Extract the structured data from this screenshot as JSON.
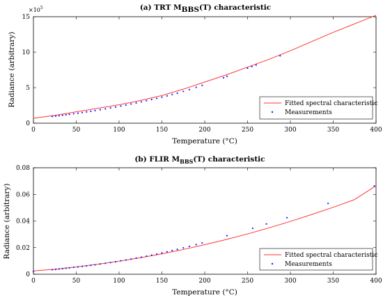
{
  "chart_data": [
    {
      "type": "line",
      "title_main": "(a) TRT M",
      "title_sub": "BBS",
      "title_tail": "(T) characteristic",
      "xlabel": "Temperature (°C)",
      "ylabel": "Radiance (arbitrary)",
      "exponent_label": "×10",
      "exponent_power": "5",
      "xlim": [
        0,
        400
      ],
      "ylim": [
        0,
        15
      ],
      "xticks": [
        0,
        50,
        100,
        150,
        200,
        250,
        300,
        350,
        400
      ],
      "yticks": [
        0,
        5,
        10,
        15
      ],
      "grid": false,
      "legend_position": "bottom-right",
      "fit_color": "#ff3333",
      "meas_color": "#1a1aff",
      "series": [
        {
          "name": "Fitted spectral characteristic",
          "x": [
            0,
            25,
            50,
            75,
            100,
            125,
            150,
            175,
            200,
            225,
            250,
            275,
            300,
            325,
            350,
            375,
            400
          ],
          "y": [
            0.7,
            1.1,
            1.6,
            2.1,
            2.6,
            3.2,
            3.9,
            4.8,
            5.8,
            6.8,
            7.9,
            9.0,
            10.2,
            11.5,
            12.8,
            14.0,
            15.2
          ]
        },
        {
          "name": "Measurements",
          "x": [
            22,
            26,
            30,
            34,
            38,
            42,
            47,
            52,
            57,
            62,
            67,
            72,
            78,
            84,
            90,
            96,
            102,
            108,
            114,
            120,
            126,
            132,
            138,
            144,
            150,
            156,
            162,
            168,
            175,
            182,
            190,
            197,
            222,
            226,
            250,
            255,
            260,
            288
          ],
          "y": [
            0.95,
            1.0,
            1.05,
            1.12,
            1.18,
            1.25,
            1.33,
            1.41,
            1.5,
            1.59,
            1.68,
            1.78,
            1.9,
            2.02,
            2.15,
            2.28,
            2.42,
            2.56,
            2.71,
            2.86,
            3.01,
            3.17,
            3.33,
            3.5,
            3.67,
            3.85,
            4.04,
            4.23,
            4.48,
            4.73,
            5.05,
            5.33,
            6.4,
            6.6,
            7.75,
            7.98,
            8.2,
            9.5
          ]
        }
      ]
    },
    {
      "type": "line",
      "title_main": "(b) FLIR M",
      "title_sub": "BBS",
      "title_tail": "(T) characteristic",
      "xlabel": "Temperature (°C)",
      "ylabel": "Radiance (arbitrary)",
      "xlim": [
        0,
        400
      ],
      "ylim": [
        0,
        0.08
      ],
      "xticks": [
        0,
        50,
        100,
        150,
        200,
        250,
        300,
        350,
        400
      ],
      "yticks": [
        0,
        0.02,
        0.04,
        0.06,
        0.08
      ],
      "grid": false,
      "legend_position": "bottom-right",
      "fit_color": "#ff3333",
      "meas_color": "#1a1aff",
      "series": [
        {
          "name": "Fitted spectral characteristic",
          "x": [
            0,
            25,
            50,
            75,
            100,
            125,
            150,
            175,
            200,
            225,
            250,
            275,
            300,
            325,
            350,
            375,
            400
          ],
          "y": [
            0.0025,
            0.0038,
            0.0055,
            0.0075,
            0.0098,
            0.0124,
            0.0153,
            0.0186,
            0.0222,
            0.0261,
            0.0303,
            0.0348,
            0.0397,
            0.0449,
            0.0503,
            0.0561,
            0.0665
          ]
        },
        {
          "name": "Measurements",
          "x": [
            0,
            22,
            26,
            30,
            34,
            38,
            42,
            47,
            52,
            57,
            62,
            67,
            72,
            78,
            84,
            90,
            96,
            102,
            108,
            114,
            120,
            126,
            132,
            138,
            144,
            150,
            156,
            162,
            168,
            175,
            182,
            190,
            197,
            226,
            256,
            272,
            296,
            344,
            398
          ],
          "y": [
            0.0022,
            0.0034,
            0.0036,
            0.0039,
            0.0042,
            0.0045,
            0.0048,
            0.0052,
            0.0055,
            0.0059,
            0.0063,
            0.0067,
            0.0071,
            0.0077,
            0.0082,
            0.0088,
            0.0094,
            0.0101,
            0.0107,
            0.0114,
            0.0121,
            0.0128,
            0.0136,
            0.0144,
            0.0152,
            0.016,
            0.0169,
            0.0178,
            0.0187,
            0.0198,
            0.0209,
            0.0223,
            0.0235,
            0.029,
            0.0345,
            0.0378,
            0.0425,
            0.0532,
            0.0663
          ]
        }
      ]
    }
  ]
}
